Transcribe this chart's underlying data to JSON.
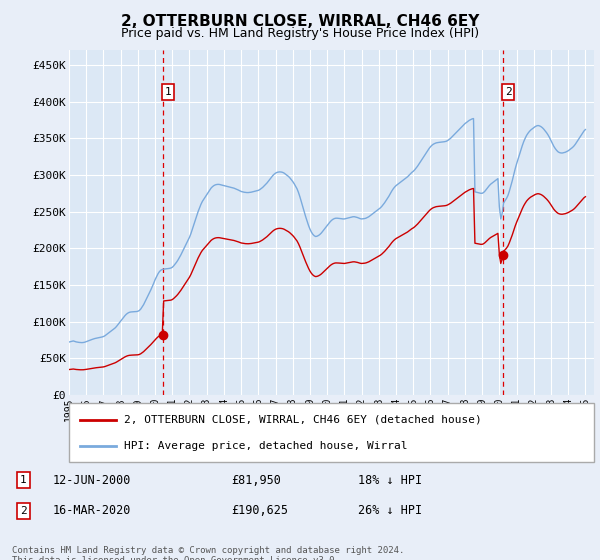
{
  "title": "2, OTTERBURN CLOSE, WIRRAL, CH46 6EY",
  "subtitle": "Price paid vs. HM Land Registry's House Price Index (HPI)",
  "bg_color": "#e8eef8",
  "plot_bg_color": "#dce8f5",
  "grid_color": "#ffffff",
  "y_min": 0,
  "y_max": 470000,
  "x_min": 1995.0,
  "x_max": 2025.5,
  "yticks": [
    0,
    50000,
    100000,
    150000,
    200000,
    250000,
    300000,
    350000,
    400000,
    450000
  ],
  "ytick_labels": [
    "£0",
    "£50K",
    "£100K",
    "£150K",
    "£200K",
    "£250K",
    "£300K",
    "£350K",
    "£400K",
    "£450K"
  ],
  "xtick_years": [
    1995,
    1996,
    1997,
    1998,
    1999,
    2000,
    2001,
    2002,
    2003,
    2004,
    2005,
    2006,
    2007,
    2008,
    2009,
    2010,
    2011,
    2012,
    2013,
    2014,
    2015,
    2016,
    2017,
    2018,
    2019,
    2020,
    2021,
    2022,
    2023,
    2024,
    2025
  ],
  "sale1_x": 2000.45,
  "sale1_y": 81950,
  "sale1_label": "1",
  "sale1_date": "12-JUN-2000",
  "sale1_price": "£81,950",
  "sale1_hpi": "18% ↓ HPI",
  "sale2_x": 2020.21,
  "sale2_y": 190625,
  "sale2_label": "2",
  "sale2_date": "16-MAR-2020",
  "sale2_price": "£190,625",
  "sale2_hpi": "26% ↓ HPI",
  "legend_property": "2, OTTERBURN CLOSE, WIRRAL, CH46 6EY (detached house)",
  "legend_hpi": "HPI: Average price, detached house, Wirral",
  "property_color": "#cc0000",
  "hpi_color": "#7aaadd",
  "footnote": "Contains HM Land Registry data © Crown copyright and database right 2024.\nThis data is licensed under the Open Government Licence v3.0.",
  "hpi_data_years": [
    1995.0,
    1995.083,
    1995.167,
    1995.25,
    1995.333,
    1995.417,
    1995.5,
    1995.583,
    1995.667,
    1995.75,
    1995.833,
    1995.917,
    1996.0,
    1996.083,
    1996.167,
    1996.25,
    1996.333,
    1996.417,
    1996.5,
    1996.583,
    1996.667,
    1996.75,
    1996.833,
    1996.917,
    1997.0,
    1997.083,
    1997.167,
    1997.25,
    1997.333,
    1997.417,
    1997.5,
    1997.583,
    1997.667,
    1997.75,
    1997.833,
    1997.917,
    1998.0,
    1998.083,
    1998.167,
    1998.25,
    1998.333,
    1998.417,
    1998.5,
    1998.583,
    1998.667,
    1998.75,
    1998.833,
    1998.917,
    1999.0,
    1999.083,
    1999.167,
    1999.25,
    1999.333,
    1999.417,
    1999.5,
    1999.583,
    1999.667,
    1999.75,
    1999.833,
    1999.917,
    2000.0,
    2000.083,
    2000.167,
    2000.25,
    2000.333,
    2000.417,
    2000.5,
    2000.583,
    2000.667,
    2000.75,
    2000.833,
    2000.917,
    2001.0,
    2001.083,
    2001.167,
    2001.25,
    2001.333,
    2001.417,
    2001.5,
    2001.583,
    2001.667,
    2001.75,
    2001.833,
    2001.917,
    2002.0,
    2002.083,
    2002.167,
    2002.25,
    2002.333,
    2002.417,
    2002.5,
    2002.583,
    2002.667,
    2002.75,
    2002.833,
    2002.917,
    2003.0,
    2003.083,
    2003.167,
    2003.25,
    2003.333,
    2003.417,
    2003.5,
    2003.583,
    2003.667,
    2003.75,
    2003.833,
    2003.917,
    2004.0,
    2004.083,
    2004.167,
    2004.25,
    2004.333,
    2004.417,
    2004.5,
    2004.583,
    2004.667,
    2004.75,
    2004.833,
    2004.917,
    2005.0,
    2005.083,
    2005.167,
    2005.25,
    2005.333,
    2005.417,
    2005.5,
    2005.583,
    2005.667,
    2005.75,
    2005.833,
    2005.917,
    2006.0,
    2006.083,
    2006.167,
    2006.25,
    2006.333,
    2006.417,
    2006.5,
    2006.583,
    2006.667,
    2006.75,
    2006.833,
    2006.917,
    2007.0,
    2007.083,
    2007.167,
    2007.25,
    2007.333,
    2007.417,
    2007.5,
    2007.583,
    2007.667,
    2007.75,
    2007.833,
    2007.917,
    2008.0,
    2008.083,
    2008.167,
    2008.25,
    2008.333,
    2008.417,
    2008.5,
    2008.583,
    2008.667,
    2008.75,
    2008.833,
    2008.917,
    2009.0,
    2009.083,
    2009.167,
    2009.25,
    2009.333,
    2009.417,
    2009.5,
    2009.583,
    2009.667,
    2009.75,
    2009.833,
    2009.917,
    2010.0,
    2010.083,
    2010.167,
    2010.25,
    2010.333,
    2010.417,
    2010.5,
    2010.583,
    2010.667,
    2010.75,
    2010.833,
    2010.917,
    2011.0,
    2011.083,
    2011.167,
    2011.25,
    2011.333,
    2011.417,
    2011.5,
    2011.583,
    2011.667,
    2011.75,
    2011.833,
    2011.917,
    2012.0,
    2012.083,
    2012.167,
    2012.25,
    2012.333,
    2012.417,
    2012.5,
    2012.583,
    2012.667,
    2012.75,
    2012.833,
    2012.917,
    2013.0,
    2013.083,
    2013.167,
    2013.25,
    2013.333,
    2013.417,
    2013.5,
    2013.583,
    2013.667,
    2013.75,
    2013.833,
    2013.917,
    2014.0,
    2014.083,
    2014.167,
    2014.25,
    2014.333,
    2014.417,
    2014.5,
    2014.583,
    2014.667,
    2014.75,
    2014.833,
    2014.917,
    2015.0,
    2015.083,
    2015.167,
    2015.25,
    2015.333,
    2015.417,
    2015.5,
    2015.583,
    2015.667,
    2015.75,
    2015.833,
    2015.917,
    2016.0,
    2016.083,
    2016.167,
    2016.25,
    2016.333,
    2016.417,
    2016.5,
    2016.583,
    2016.667,
    2016.75,
    2016.833,
    2016.917,
    2017.0,
    2017.083,
    2017.167,
    2017.25,
    2017.333,
    2017.417,
    2017.5,
    2017.583,
    2017.667,
    2017.75,
    2017.833,
    2017.917,
    2018.0,
    2018.083,
    2018.167,
    2018.25,
    2018.333,
    2018.417,
    2018.5,
    2018.583,
    2018.667,
    2018.75,
    2018.833,
    2018.917,
    2019.0,
    2019.083,
    2019.167,
    2019.25,
    2019.333,
    2019.417,
    2019.5,
    2019.583,
    2019.667,
    2019.75,
    2019.833,
    2019.917,
    2020.0,
    2020.083,
    2020.167,
    2020.25,
    2020.333,
    2020.417,
    2020.5,
    2020.583,
    2020.667,
    2020.75,
    2020.833,
    2020.917,
    2021.0,
    2021.083,
    2021.167,
    2021.25,
    2021.333,
    2021.417,
    2021.5,
    2021.583,
    2021.667,
    2021.75,
    2021.833,
    2021.917,
    2022.0,
    2022.083,
    2022.167,
    2022.25,
    2022.333,
    2022.417,
    2022.5,
    2022.583,
    2022.667,
    2022.75,
    2022.833,
    2022.917,
    2023.0,
    2023.083,
    2023.167,
    2023.25,
    2023.333,
    2023.417,
    2023.5,
    2023.583,
    2023.667,
    2023.75,
    2023.833,
    2023.917,
    2024.0,
    2024.083,
    2024.167,
    2024.25,
    2024.333,
    2024.417,
    2024.5,
    2024.583,
    2024.667,
    2024.75,
    2024.833,
    2024.917,
    2025.0
  ],
  "hpi_data_values": [
    72000,
    72500,
    73000,
    73500,
    72800,
    72200,
    71800,
    71500,
    71300,
    71200,
    71400,
    71800,
    72500,
    73200,
    74000,
    74800,
    75500,
    76200,
    76800,
    77200,
    77600,
    78000,
    78400,
    78900,
    79500,
    80500,
    82000,
    83500,
    85000,
    86500,
    88000,
    89500,
    91000,
    93000,
    95500,
    98000,
    100500,
    103000,
    105500,
    108000,
    110000,
    111500,
    112500,
    113000,
    113200,
    113400,
    113500,
    113600,
    114000,
    115000,
    117000,
    120000,
    123000,
    127000,
    131000,
    135000,
    139000,
    143000,
    147500,
    152000,
    157000,
    161000,
    165000,
    168000,
    170000,
    171000,
    171500,
    171800,
    172000,
    172200,
    172500,
    173000,
    174000,
    176000,
    178500,
    181000,
    184000,
    187500,
    191000,
    195000,
    199000,
    203000,
    207000,
    211000,
    215000,
    220000,
    226000,
    232000,
    238000,
    244000,
    250000,
    255000,
    260000,
    264000,
    267000,
    270000,
    273000,
    276000,
    279000,
    282000,
    284000,
    285500,
    286500,
    287000,
    287200,
    287000,
    286500,
    286000,
    285500,
    285000,
    284500,
    284000,
    283500,
    283000,
    282500,
    282000,
    281200,
    280400,
    279500,
    278500,
    277500,
    277000,
    276500,
    276200,
    276000,
    276000,
    276200,
    276500,
    277000,
    277500,
    278000,
    278500,
    279000,
    280000,
    281500,
    283000,
    285000,
    287000,
    289000,
    291500,
    294000,
    296500,
    299000,
    301000,
    302500,
    303500,
    304000,
    304200,
    304000,
    303500,
    302500,
    301000,
    299500,
    298000,
    296000,
    293500,
    291000,
    288000,
    284500,
    281000,
    276000,
    270000,
    263500,
    256500,
    249500,
    243000,
    237000,
    231000,
    226000,
    222000,
    219000,
    217000,
    216000,
    216500,
    217500,
    219000,
    221000,
    223500,
    226000,
    228500,
    231000,
    233500,
    236000,
    238000,
    239500,
    240500,
    241000,
    241000,
    240800,
    240600,
    240300,
    240000,
    240000,
    240500,
    241000,
    241500,
    242000,
    242500,
    243000,
    243000,
    242500,
    242000,
    241200,
    240400,
    240000,
    240200,
    240500,
    241000,
    242000,
    243000,
    244500,
    246000,
    247500,
    249000,
    250500,
    252000,
    253500,
    255000,
    257000,
    259500,
    262000,
    265000,
    268000,
    271000,
    274500,
    278000,
    281000,
    283500,
    285500,
    287000,
    288500,
    290000,
    291500,
    293000,
    294500,
    296000,
    297500,
    299500,
    301500,
    303500,
    305000,
    307000,
    309500,
    312000,
    315000,
    318000,
    321000,
    324000,
    327000,
    330000,
    333000,
    336000,
    338500,
    340500,
    342000,
    343000,
    343800,
    344200,
    344500,
    344700,
    345000,
    345200,
    345500,
    346000,
    347000,
    348500,
    350000,
    352000,
    354000,
    356000,
    358000,
    360000,
    362000,
    364000,
    366000,
    368000,
    370000,
    371500,
    373000,
    374500,
    375500,
    376500,
    377000,
    277000,
    276500,
    276000,
    275500,
    275000,
    275000,
    276000,
    278000,
    280500,
    283000,
    285500,
    287500,
    289000,
    290500,
    292000,
    293500,
    295000,
    257000,
    240000,
    248000,
    262000,
    265000,
    268000,
    272000,
    278000,
    285000,
    292000,
    300000,
    308000,
    315000,
    321000,
    327500,
    334000,
    340000,
    345500,
    350000,
    354000,
    357000,
    359500,
    361500,
    363000,
    364500,
    366000,
    367000,
    367500,
    367000,
    366000,
    364500,
    362500,
    360000,
    357500,
    354500,
    351000,
    347000,
    343000,
    339000,
    336000,
    333500,
    331500,
    330500,
    330000,
    330000,
    330500,
    331000,
    332000,
    333000,
    334500,
    336000,
    337500,
    339500,
    342000,
    345000,
    348000,
    351000,
    354000,
    357000,
    360000,
    362000
  ]
}
